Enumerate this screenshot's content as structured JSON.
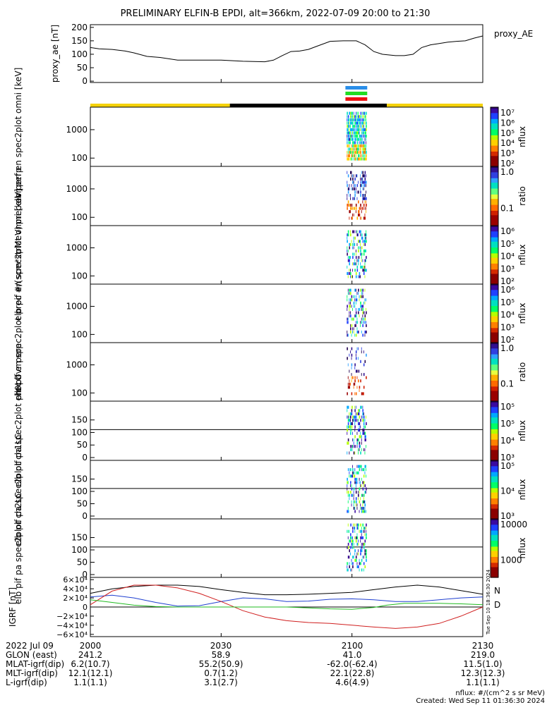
{
  "title": "PRELIMINARY ELFIN-B EPDI, alt=366km, 2022-07-09 20:00 to 21:30",
  "timeline": {
    "tick_labels": [
      "2000",
      "2030",
      "2100",
      "2130"
    ],
    "tick_minutes": [
      0,
      30,
      60,
      90
    ],
    "t_start": 0,
    "t_end": 90
  },
  "proxy_ae": {
    "ylabel": "proxy_ae [nT]",
    "legend": "proxy_AE",
    "ytick_labels": [
      "200",
      "150",
      "100",
      "50",
      "0"
    ],
    "ylim": [
      -5,
      210
    ],
    "minutes": [
      0,
      2,
      5,
      8,
      10,
      13,
      16,
      20,
      25,
      30,
      35,
      40,
      42,
      44,
      46,
      48,
      50,
      52,
      55,
      58,
      61,
      63,
      65,
      67,
      70,
      72,
      74,
      76,
      78,
      80,
      82,
      84,
      86,
      88,
      90
    ],
    "values": [
      125,
      120,
      118,
      112,
      105,
      92,
      88,
      78,
      78,
      78,
      74,
      72,
      78,
      95,
      110,
      112,
      118,
      130,
      148,
      150,
      150,
      135,
      110,
      100,
      95,
      95,
      100,
      125,
      135,
      140,
      145,
      148,
      150,
      160,
      168
    ]
  },
  "status_bars": {
    "colors": [
      "#2a8ee8",
      "#22dd22",
      "#ee1111"
    ],
    "sun_color": "#f5d20a",
    "shadow_color": "#000000",
    "shadow_range": [
      32,
      68
    ],
    "science_range": [
      58.5,
      63.5
    ]
  },
  "panels": [
    {
      "ylabel": "elb perf en spec2plot omni [keV]",
      "ytick_labels": [
        "1000",
        "100"
      ],
      "cbar_labels": [
        "10⁷",
        "10⁶",
        "10⁵",
        "10⁴",
        "10³",
        "10²"
      ],
      "cbar_title": "nflux",
      "cbar_type": "rainbow"
    },
    {
      "ylabel": "prec ovr perp",
      "ytick_labels": [
        "1000",
        "100"
      ],
      "cbar_labels": [
        "1.0",
        "0.1"
      ],
      "cbar_title": "ratio",
      "cbar_type": "ratio"
    },
    {
      "ylabel": "elb pif en spec2plot omni [keV]",
      "ytick_labels": [
        "1000",
        "100"
      ],
      "cbar_labels": [
        "10⁶",
        "10⁵",
        "10⁴",
        "10³",
        "10²"
      ],
      "cbar_title": "nflux",
      "cbar_type": "rainbow"
    },
    {
      "ylabel": "elb pif en spec2plot prec #/(scm²strMeV)",
      "ytick_labels": [
        "1000",
        "100"
      ],
      "cbar_labels": [
        "10⁶",
        "10⁵",
        "10⁴",
        "10³",
        "10²"
      ],
      "cbar_title": "nflux",
      "cbar_type": "rainbow"
    },
    {
      "ylabel": "prec ovr perp",
      "ytick_labels": [
        "1000",
        "100"
      ],
      "cbar_labels": [
        "1.0",
        "0.1"
      ],
      "cbar_title": "ratio",
      "cbar_type": "ratio"
    },
    {
      "ylabel": "elb pif pa spec2plot ch0LC",
      "ytick_labels": [
        "150",
        "100",
        "50",
        "0"
      ],
      "cbar_labels": [
        "10⁵",
        "10⁵",
        "10⁴",
        "10³"
      ],
      "cbar_title": "nflux",
      "cbar_type": "rainbow"
    },
    {
      "ylabel": "elb pif pa spec2plot ch1LC",
      "ytick_labels": [
        "150",
        "100",
        "50",
        "0"
      ],
      "cbar_labels": [
        "10⁵",
        "10⁴",
        "10³"
      ],
      "cbar_title": "nflux",
      "cbar_type": "rainbow"
    },
    {
      "ylabel": "elb pif pa spec2plot ch2LC",
      "ytick_labels": [
        "150",
        "100",
        "50",
        "0"
      ],
      "cbar_labels": [
        "10000",
        "1000"
      ],
      "cbar_title": "nflux",
      "cbar_type": "rainbow"
    }
  ],
  "igrf": {
    "ylabel": "IGRF [nT]",
    "ytick_labels": [
      "6×10⁴",
      "4×10⁴",
      "2×10⁴",
      "0",
      "−2×10⁴",
      "−4×10⁴",
      "−6×10⁴"
    ],
    "ylim": [
      -65000,
      65000
    ],
    "legend": [
      {
        "name": "N",
        "color": "#1f3fd0"
      },
      {
        "name": "D",
        "color": "#d01f1f"
      }
    ],
    "side_label": "Tue Sep 10 18:36:30 2024",
    "series": [
      {
        "color": "#000000",
        "minutes": [
          0,
          5,
          10,
          15,
          20,
          25,
          30,
          35,
          40,
          45,
          50,
          55,
          60,
          65,
          70,
          75,
          80,
          85,
          90
        ],
        "values": [
          30000,
          40000,
          45000,
          48000,
          48000,
          45000,
          38000,
          32000,
          27000,
          27000,
          28000,
          30000,
          32000,
          38000,
          44000,
          48000,
          44000,
          36000,
          28000
        ]
      },
      {
        "color": "#1f3fd0",
        "minutes": [
          0,
          5,
          10,
          15,
          20,
          25,
          30,
          35,
          40,
          45,
          50,
          55,
          60,
          65,
          70,
          75,
          80,
          85,
          90
        ],
        "values": [
          22000,
          26000,
          20000,
          10000,
          2000,
          3000,
          12000,
          20000,
          18000,
          12000,
          13000,
          17000,
          18000,
          16000,
          12000,
          12000,
          16000,
          20000,
          22000
        ]
      },
      {
        "color": "#d01f1f",
        "minutes": [
          0,
          5,
          10,
          15,
          20,
          25,
          30,
          35,
          40,
          45,
          50,
          55,
          60,
          65,
          70,
          75,
          80,
          85,
          90
        ],
        "values": [
          5000,
          35000,
          48000,
          48000,
          42000,
          30000,
          12000,
          -8000,
          -22000,
          -30000,
          -34000,
          -36000,
          -40000,
          -44000,
          -47000,
          -44000,
          -36000,
          -20000,
          0
        ]
      },
      {
        "color": "#22bb22",
        "minutes": [
          0,
          5,
          10,
          15,
          20,
          25,
          30,
          35,
          40,
          45,
          50,
          55,
          60,
          65,
          68,
          72,
          76,
          80,
          85,
          90
        ],
        "values": [
          16000,
          10000,
          4000,
          1000,
          0,
          0,
          0,
          0,
          0,
          0,
          -2000,
          -4000,
          -5000,
          -1000,
          4000,
          8000,
          8000,
          8000,
          7000,
          5000
        ]
      }
    ]
  },
  "ephem": {
    "rows": [
      {
        "label": "2022 Jul 09",
        "values": [
          "2000",
          "2030",
          "2100",
          "2130"
        ]
      },
      {
        "label": "GLON (east)",
        "values": [
          "241.2",
          "58.9",
          "41.0",
          "219.0"
        ]
      },
      {
        "label": "MLAT-igrf(dip)",
        "values": [
          "6.2(10.7)",
          "55.2(50.9)",
          "-62.0(-62.4)",
          "11.5(1.0)"
        ]
      },
      {
        "label": "MLT-igrf(dip)",
        "values": [
          "12.1(12.1)",
          "0.7(1.2)",
          "22.1(22.8)",
          "12.3(12.3)"
        ]
      },
      {
        "label": "L-igrf(dip)",
        "values": [
          "1.1(1.1)",
          "3.1(2.7)",
          "4.6(4.9)",
          "1.1(1.1)"
        ]
      }
    ]
  },
  "footer": {
    "units": "nflux: #/(cm^2 s sr MeV)",
    "created": "Created: Wed Sep 11 01:36:30 2024"
  }
}
